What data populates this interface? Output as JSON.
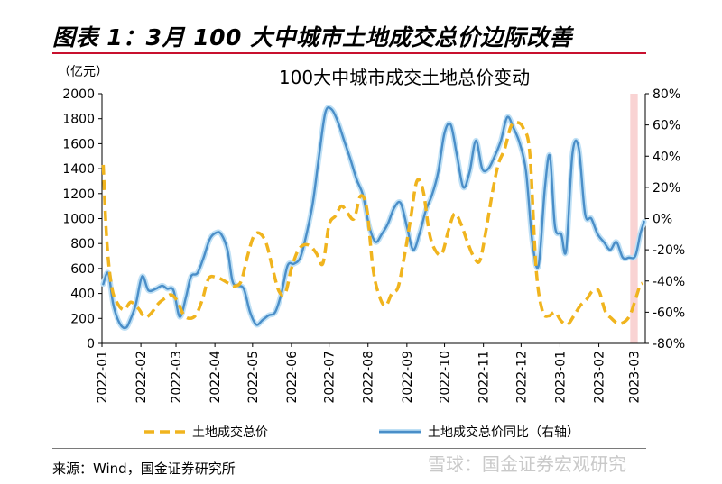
{
  "figure": {
    "caption": "图表 1：3月 100 大中城市土地成交总价边际改善",
    "source": "来源：Wind，国金证券研究所",
    "watermark": "雪球：国金证券宏观研究"
  },
  "chart_data": {
    "type": "line",
    "title": "100大中城市成交土地总价变动",
    "y_unit": "（亿元）",
    "x_ticks": [
      "2022-01",
      "2022-02",
      "2022-03",
      "2022-04",
      "2022-05",
      "2022-06",
      "2022-07",
      "2022-08",
      "2022-09",
      "2022-10",
      "2022-11",
      "2022-12",
      "2023-01",
      "2023-02",
      "2023-03"
    ],
    "left_axis": {
      "min": 0,
      "max": 2000,
      "step": 200,
      "ticks": [
        "0",
        "200",
        "400",
        "600",
        "800",
        "1000",
        "1200",
        "1400",
        "1600",
        "1800",
        "2000"
      ]
    },
    "right_axis": {
      "min": -80,
      "max": 80,
      "step": 20,
      "ticks": [
        "-80%",
        "-60%",
        "-40%",
        "-20%",
        "0%",
        "20%",
        "40%",
        "60%",
        "80%"
      ]
    },
    "highlight": {
      "from": "2023-02-26",
      "to": "2023-03-04",
      "color": "#f9d3d3"
    },
    "legend": [
      "土地成交总价",
      "土地成交总价同比（右轴）"
    ],
    "series": [
      {
        "name": "土地成交总价",
        "axis": "left",
        "color": "#f0b41e",
        "style": "dashed",
        "points": [
          [
            "2022-01-02",
            1430
          ],
          [
            "2022-01-05",
            800
          ],
          [
            "2022-01-09",
            440
          ],
          [
            "2022-01-14",
            310
          ],
          [
            "2022-01-19",
            270
          ],
          [
            "2022-01-24",
            330
          ],
          [
            "2022-01-30",
            280
          ],
          [
            "2022-02-04",
            210
          ],
          [
            "2022-02-09",
            240
          ],
          [
            "2022-02-15",
            320
          ],
          [
            "2022-02-20",
            360
          ],
          [
            "2022-02-25",
            390
          ],
          [
            "2022-03-02",
            340
          ],
          [
            "2022-03-07",
            230
          ],
          [
            "2022-03-12",
            200
          ],
          [
            "2022-03-17",
            230
          ],
          [
            "2022-03-22",
            350
          ],
          [
            "2022-03-27",
            520
          ],
          [
            "2022-04-02",
            530
          ],
          [
            "2022-04-07",
            510
          ],
          [
            "2022-04-12",
            480
          ],
          [
            "2022-04-17",
            460
          ],
          [
            "2022-04-22",
            500
          ],
          [
            "2022-04-27",
            700
          ],
          [
            "2022-05-02",
            860
          ],
          [
            "2022-05-07",
            880
          ],
          [
            "2022-05-12",
            800
          ],
          [
            "2022-05-17",
            600
          ],
          [
            "2022-05-22",
            420
          ],
          [
            "2022-05-27",
            400
          ],
          [
            "2022-06-01",
            600
          ],
          [
            "2022-06-06",
            740
          ],
          [
            "2022-06-11",
            790
          ],
          [
            "2022-06-16",
            780
          ],
          [
            "2022-06-21",
            720
          ],
          [
            "2022-06-26",
            640
          ],
          [
            "2022-07-01",
            950
          ],
          [
            "2022-07-06",
            1020
          ],
          [
            "2022-07-11",
            1100
          ],
          [
            "2022-07-16",
            1040
          ],
          [
            "2022-07-21",
            1000
          ],
          [
            "2022-07-26",
            1180
          ],
          [
            "2022-07-31",
            1080
          ],
          [
            "2022-08-05",
            600
          ],
          [
            "2022-08-10",
            380
          ],
          [
            "2022-08-15",
            300
          ],
          [
            "2022-08-20",
            400
          ],
          [
            "2022-08-25",
            450
          ],
          [
            "2022-08-30",
            700
          ],
          [
            "2022-09-04",
            1000
          ],
          [
            "2022-09-09",
            1300
          ],
          [
            "2022-09-14",
            1220
          ],
          [
            "2022-09-19",
            880
          ],
          [
            "2022-09-24",
            740
          ],
          [
            "2022-09-29",
            720
          ],
          [
            "2022-10-04",
            900
          ],
          [
            "2022-10-09",
            1040
          ],
          [
            "2022-10-14",
            960
          ],
          [
            "2022-10-19",
            820
          ],
          [
            "2022-10-24",
            700
          ],
          [
            "2022-10-29",
            660
          ],
          [
            "2022-11-03",
            900
          ],
          [
            "2022-11-08",
            1200
          ],
          [
            "2022-11-13",
            1440
          ],
          [
            "2022-11-18",
            1560
          ],
          [
            "2022-11-23",
            1740
          ],
          [
            "2022-11-28",
            1770
          ],
          [
            "2022-12-03",
            1720
          ],
          [
            "2022-12-08",
            1520
          ],
          [
            "2022-12-13",
            600
          ],
          [
            "2022-12-18",
            260
          ],
          [
            "2022-12-23",
            220
          ],
          [
            "2022-12-28",
            250
          ],
          [
            "2023-01-02",
            180
          ],
          [
            "2023-01-07",
            150
          ],
          [
            "2023-01-12",
            220
          ],
          [
            "2023-01-17",
            300
          ],
          [
            "2023-01-22",
            350
          ],
          [
            "2023-01-27",
            420
          ],
          [
            "2023-02-01",
            420
          ],
          [
            "2023-02-06",
            260
          ],
          [
            "2023-02-11",
            200
          ],
          [
            "2023-02-16",
            160
          ],
          [
            "2023-02-21",
            170
          ],
          [
            "2023-02-26",
            230
          ],
          [
            "2023-03-03",
            380
          ],
          [
            "2023-03-06",
            470
          ],
          [
            "2023-03-08",
            480
          ]
        ]
      },
      {
        "name": "土地成交总价同比（右轴）",
        "axis": "right",
        "color": "#4a8ec8",
        "style": "solid",
        "points": [
          [
            "2022-01-02",
            -42
          ],
          [
            "2022-01-06",
            -35
          ],
          [
            "2022-01-10",
            -55
          ],
          [
            "2022-01-15",
            -67
          ],
          [
            "2022-01-20",
            -70
          ],
          [
            "2022-01-24",
            -64
          ],
          [
            "2022-01-28",
            -55
          ],
          [
            "2022-02-02",
            -37
          ],
          [
            "2022-02-07",
            -46
          ],
          [
            "2022-02-13",
            -45
          ],
          [
            "2022-02-18",
            -43
          ],
          [
            "2022-02-22",
            -45
          ],
          [
            "2022-02-27",
            -46
          ],
          [
            "2022-03-04",
            -63
          ],
          [
            "2022-03-09",
            -50
          ],
          [
            "2022-03-13",
            -37
          ],
          [
            "2022-03-18",
            -35
          ],
          [
            "2022-03-23",
            -25
          ],
          [
            "2022-03-28",
            -13
          ],
          [
            "2022-04-02",
            -9
          ],
          [
            "2022-04-06",
            -10
          ],
          [
            "2022-04-11",
            -20
          ],
          [
            "2022-04-15",
            -40
          ],
          [
            "2022-04-19",
            -43
          ],
          [
            "2022-04-24",
            -45
          ],
          [
            "2022-04-29",
            -60
          ],
          [
            "2022-05-04",
            -68
          ],
          [
            "2022-05-09",
            -65
          ],
          [
            "2022-05-14",
            -62
          ],
          [
            "2022-05-19",
            -60
          ],
          [
            "2022-05-24",
            -48
          ],
          [
            "2022-05-29",
            -30
          ],
          [
            "2022-06-03",
            -29
          ],
          [
            "2022-06-08",
            -25
          ],
          [
            "2022-06-13",
            -10
          ],
          [
            "2022-06-18",
            10
          ],
          [
            "2022-06-23",
            40
          ],
          [
            "2022-06-28",
            68
          ],
          [
            "2022-07-03",
            70
          ],
          [
            "2022-07-08",
            62
          ],
          [
            "2022-07-13",
            50
          ],
          [
            "2022-07-18",
            38
          ],
          [
            "2022-07-23",
            25
          ],
          [
            "2022-07-28",
            15
          ],
          [
            "2022-08-02",
            -5
          ],
          [
            "2022-08-07",
            -15
          ],
          [
            "2022-08-12",
            -10
          ],
          [
            "2022-08-17",
            -3
          ],
          [
            "2022-08-22",
            7
          ],
          [
            "2022-08-27",
            10
          ],
          [
            "2022-09-01",
            -5
          ],
          [
            "2022-09-06",
            -20
          ],
          [
            "2022-09-11",
            -10
          ],
          [
            "2022-09-16",
            5
          ],
          [
            "2022-09-21",
            15
          ],
          [
            "2022-09-26",
            30
          ],
          [
            "2022-10-01",
            55
          ],
          [
            "2022-10-06",
            60
          ],
          [
            "2022-10-11",
            40
          ],
          [
            "2022-10-16",
            20
          ],
          [
            "2022-10-21",
            30
          ],
          [
            "2022-10-26",
            50
          ],
          [
            "2022-10-31",
            32
          ],
          [
            "2022-11-05",
            32
          ],
          [
            "2022-11-10",
            40
          ],
          [
            "2022-11-15",
            50
          ],
          [
            "2022-11-20",
            65
          ],
          [
            "2022-11-25",
            58
          ],
          [
            "2022-11-30",
            48
          ],
          [
            "2022-12-05",
            30
          ],
          [
            "2022-12-10",
            -15
          ],
          [
            "2022-12-15",
            -30
          ],
          [
            "2022-12-20",
            20
          ],
          [
            "2022-12-24",
            40
          ],
          [
            "2022-12-28",
            -5
          ],
          [
            "2023-01-02",
            -10
          ],
          [
            "2023-01-06",
            -20
          ],
          [
            "2023-01-11",
            42
          ],
          [
            "2023-01-16",
            45
          ],
          [
            "2023-01-21",
            3
          ],
          [
            "2023-01-26",
            0
          ],
          [
            "2023-01-31",
            -10
          ],
          [
            "2023-02-05",
            -15
          ],
          [
            "2023-02-10",
            -20
          ],
          [
            "2023-02-15",
            -15
          ],
          [
            "2023-02-20",
            -25
          ],
          [
            "2023-02-25",
            -25
          ],
          [
            "2023-03-02",
            -24
          ],
          [
            "2023-03-06",
            -10
          ],
          [
            "2023-03-09",
            -2
          ]
        ]
      }
    ]
  }
}
